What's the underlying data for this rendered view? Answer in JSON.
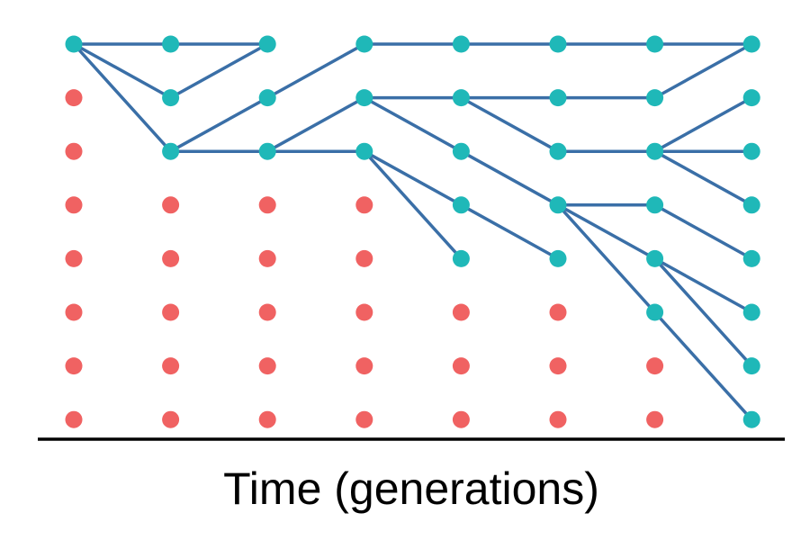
{
  "axis": {
    "xlabel": "Time (generations)"
  },
  "colors": {
    "lineage_node": "#1fb8b8",
    "extinct_node": "#f06262",
    "edge": "#3a6fa7",
    "axis_line": "#000000",
    "text": "#000000"
  },
  "genealogy": {
    "generations": 8,
    "individuals_per_generation": 8,
    "lineage_nodes": [
      [
        0,
        0
      ],
      [
        1,
        0
      ],
      [
        1,
        1
      ],
      [
        1,
        2
      ],
      [
        2,
        0
      ],
      [
        2,
        1
      ],
      [
        2,
        2
      ],
      [
        3,
        0
      ],
      [
        3,
        1
      ],
      [
        3,
        2
      ],
      [
        4,
        0
      ],
      [
        4,
        1
      ],
      [
        4,
        2
      ],
      [
        4,
        3
      ],
      [
        4,
        4
      ],
      [
        5,
        0
      ],
      [
        5,
        1
      ],
      [
        5,
        2
      ],
      [
        5,
        3
      ],
      [
        5,
        4
      ],
      [
        6,
        0
      ],
      [
        6,
        1
      ],
      [
        6,
        2
      ],
      [
        6,
        3
      ],
      [
        6,
        4
      ],
      [
        6,
        5
      ],
      [
        7,
        0
      ],
      [
        7,
        1
      ],
      [
        7,
        2
      ],
      [
        7,
        3
      ],
      [
        7,
        4
      ],
      [
        7,
        5
      ],
      [
        7,
        6
      ],
      [
        7,
        7
      ]
    ],
    "edges": [
      [
        [
          0,
          0
        ],
        [
          1,
          0
        ]
      ],
      [
        [
          0,
          0
        ],
        [
          1,
          1
        ]
      ],
      [
        [
          0,
          0
        ],
        [
          1,
          2
        ]
      ],
      [
        [
          1,
          0
        ],
        [
          2,
          0
        ]
      ],
      [
        [
          1,
          1
        ],
        [
          2,
          0
        ]
      ],
      [
        [
          1,
          2
        ],
        [
          2,
          1
        ]
      ],
      [
        [
          1,
          2
        ],
        [
          2,
          2
        ]
      ],
      [
        [
          2,
          1
        ],
        [
          3,
          0
        ]
      ],
      [
        [
          2,
          2
        ],
        [
          3,
          1
        ]
      ],
      [
        [
          2,
          2
        ],
        [
          3,
          2
        ]
      ],
      [
        [
          3,
          0
        ],
        [
          4,
          0
        ]
      ],
      [
        [
          3,
          1
        ],
        [
          4,
          1
        ]
      ],
      [
        [
          3,
          1
        ],
        [
          4,
          2
        ]
      ],
      [
        [
          3,
          2
        ],
        [
          4,
          3
        ]
      ],
      [
        [
          3,
          2
        ],
        [
          4,
          4
        ]
      ],
      [
        [
          4,
          0
        ],
        [
          5,
          0
        ]
      ],
      [
        [
          4,
          1
        ],
        [
          5,
          1
        ]
      ],
      [
        [
          4,
          1
        ],
        [
          5,
          2
        ]
      ],
      [
        [
          4,
          2
        ],
        [
          5,
          3
        ]
      ],
      [
        [
          4,
          3
        ],
        [
          5,
          4
        ]
      ],
      [
        [
          5,
          0
        ],
        [
          6,
          0
        ]
      ],
      [
        [
          5,
          1
        ],
        [
          6,
          1
        ]
      ],
      [
        [
          5,
          2
        ],
        [
          6,
          2
        ]
      ],
      [
        [
          5,
          3
        ],
        [
          6,
          3
        ]
      ],
      [
        [
          5,
          3
        ],
        [
          6,
          4
        ]
      ],
      [
        [
          5,
          3
        ],
        [
          6,
          5
        ]
      ],
      [
        [
          6,
          0
        ],
        [
          7,
          0
        ]
      ],
      [
        [
          6,
          1
        ],
        [
          7,
          0
        ]
      ],
      [
        [
          6,
          2
        ],
        [
          7,
          1
        ]
      ],
      [
        [
          6,
          2
        ],
        [
          7,
          2
        ]
      ],
      [
        [
          6,
          2
        ],
        [
          7,
          3
        ]
      ],
      [
        [
          6,
          3
        ],
        [
          7,
          4
        ]
      ],
      [
        [
          6,
          4
        ],
        [
          7,
          5
        ]
      ],
      [
        [
          6,
          4
        ],
        [
          7,
          6
        ]
      ],
      [
        [
          6,
          5
        ],
        [
          7,
          7
        ]
      ]
    ]
  }
}
